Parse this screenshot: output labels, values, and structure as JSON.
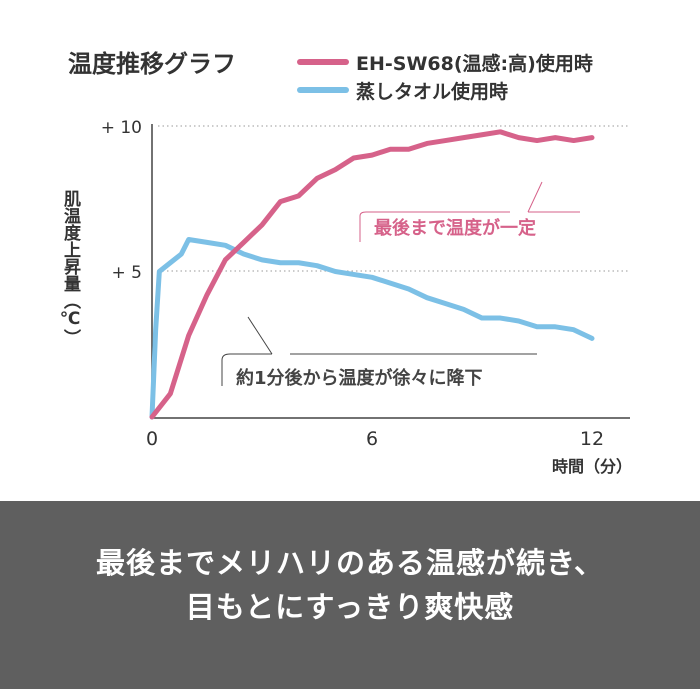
{
  "chart_data": {
    "type": "line",
    "title": "温度推移グラフ",
    "xlabel": "時間（分）",
    "ylabel": "肌温度上昇量（℃）",
    "xlim": [
      0,
      12.6
    ],
    "ylim": [
      0,
      10
    ],
    "x_ticks": [
      "0",
      "6",
      "12"
    ],
    "y_ticks": [
      "+ 5",
      "+ 10"
    ],
    "y_tick_values": [
      5,
      10
    ],
    "grid": "dotted horizontal at +5 and +10",
    "legend": "top-right",
    "series": [
      {
        "name": "EH-SW68(温感:高)使用時",
        "color": "#d6628a",
        "x": [
          0,
          0.5,
          1,
          1.5,
          2,
          2.5,
          3,
          3.5,
          4,
          4.5,
          5,
          5.5,
          6,
          6.5,
          7,
          7.5,
          8,
          8.5,
          9,
          9.5,
          10,
          10.5,
          11,
          11.5,
          12
        ],
        "y": [
          0,
          0.8,
          2.8,
          4.2,
          5.4,
          6.0,
          6.6,
          7.4,
          7.6,
          8.2,
          8.5,
          8.9,
          9.0,
          9.2,
          9.2,
          9.4,
          9.5,
          9.6,
          9.7,
          9.8,
          9.6,
          9.5,
          9.6,
          9.5,
          9.6
        ]
      },
      {
        "name": "蒸しタオル使用時",
        "color": "#7cc0e6",
        "x": [
          0,
          0.1,
          0.2,
          0.5,
          0.8,
          1,
          1.5,
          2,
          2.5,
          3,
          3.5,
          4,
          4.5,
          5,
          5.5,
          6,
          6.5,
          7,
          7.5,
          8,
          8.5,
          9,
          9.5,
          10,
          10.5,
          11,
          11.5,
          12
        ],
        "y": [
          0,
          3.0,
          5.0,
          5.3,
          5.6,
          6.1,
          6.0,
          5.9,
          5.6,
          5.4,
          5.3,
          5.3,
          5.2,
          5.0,
          4.9,
          4.8,
          4.6,
          4.4,
          4.1,
          3.9,
          3.7,
          3.4,
          3.4,
          3.3,
          3.1,
          3.1,
          3.0,
          2.7
        ]
      }
    ],
    "annotations": [
      "最後まで温度が一定",
      "約1分後から温度が徐々に降下"
    ]
  },
  "caption": {
    "line1": "最後までメリハリのある温感が続き、",
    "line2": "目もとにすっきり爽快感"
  }
}
